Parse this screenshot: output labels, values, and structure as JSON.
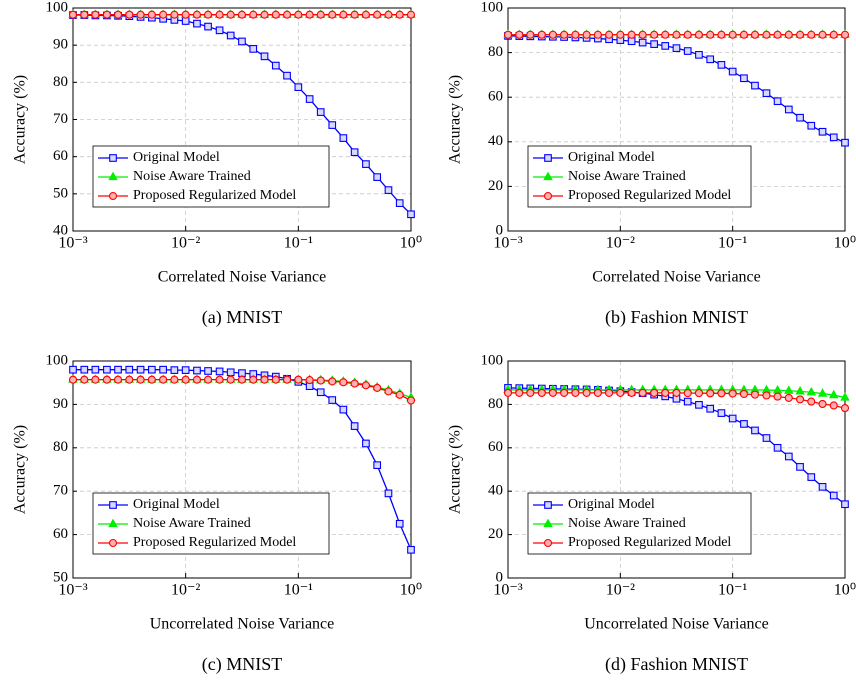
{
  "chart_data": [
    {
      "type": "line",
      "xscale": "log",
      "grid": true,
      "legend": "lower left",
      "ylabel": "Accuracy (%)",
      "xlabel": "Correlated Noise Variance",
      "caption": "(a) MNIST",
      "x": [
        0.001,
        0.00126,
        0.00158,
        0.002,
        0.00251,
        0.00316,
        0.00398,
        0.00501,
        0.00631,
        0.00794,
        0.01,
        0.0126,
        0.0158,
        0.02,
        0.0251,
        0.0316,
        0.0398,
        0.0501,
        0.0631,
        0.0794,
        0.1,
        0.126,
        0.158,
        0.2,
        0.251,
        0.316,
        0.398,
        0.501,
        0.631,
        0.794,
        1
      ],
      "xlim": [
        0.001,
        1
      ],
      "xticks": [
        {
          "value": 0.001,
          "label": "10⁻³"
        },
        {
          "value": 0.01,
          "label": "10⁻²"
        },
        {
          "value": 0.1,
          "label": "10⁻¹"
        },
        {
          "value": 1,
          "label": "10⁰"
        }
      ],
      "ylim": [
        40,
        100
      ],
      "yticks": [
        40,
        50,
        60,
        70,
        80,
        90,
        100
      ],
      "series": [
        {
          "name": "Original Model",
          "color": "#0000ff",
          "marker": "square",
          "values": [
            98.1,
            98.1,
            98.0,
            98.0,
            97.9,
            97.8,
            97.6,
            97.4,
            97.1,
            96.8,
            96.5,
            95.8,
            95.0,
            94.0,
            92.6,
            91.0,
            89.0,
            87.0,
            84.5,
            81.8,
            78.7,
            75.5,
            72.0,
            68.5,
            65.0,
            61.2,
            58.0,
            54.5,
            51.0,
            47.5,
            44.5
          ]
        },
        {
          "name": "Noise Aware Trained",
          "color": "#00ee00",
          "marker": "triangle",
          "values": [
            98.2,
            98.2,
            98.2,
            98.2,
            98.2,
            98.2,
            98.2,
            98.2,
            98.2,
            98.2,
            98.2,
            98.2,
            98.2,
            98.2,
            98.2,
            98.2,
            98.2,
            98.2,
            98.2,
            98.2,
            98.2,
            98.2,
            98.2,
            98.2,
            98.2,
            98.2,
            98.2,
            98.2,
            98.2,
            98.2,
            98.2
          ]
        },
        {
          "name": "Proposed Regularized Model",
          "color": "#ff0000",
          "marker": "circle",
          "values": [
            98.2,
            98.2,
            98.2,
            98.2,
            98.2,
            98.2,
            98.2,
            98.2,
            98.2,
            98.2,
            98.2,
            98.2,
            98.2,
            98.2,
            98.2,
            98.2,
            98.2,
            98.2,
            98.2,
            98.2,
            98.2,
            98.2,
            98.2,
            98.2,
            98.2,
            98.2,
            98.2,
            98.2,
            98.2,
            98.2,
            98.2
          ]
        }
      ]
    },
    {
      "type": "line",
      "xscale": "log",
      "grid": true,
      "legend": "lower left",
      "ylabel": "Accuracy (%)",
      "xlabel": "Correlated Noise Variance",
      "caption": "(b) Fashion MNIST",
      "x": [
        0.001,
        0.00126,
        0.00158,
        0.002,
        0.00251,
        0.00316,
        0.00398,
        0.00501,
        0.00631,
        0.00794,
        0.01,
        0.0126,
        0.0158,
        0.02,
        0.0251,
        0.0316,
        0.0398,
        0.0501,
        0.0631,
        0.0794,
        0.1,
        0.126,
        0.158,
        0.2,
        0.251,
        0.316,
        0.398,
        0.501,
        0.631,
        0.794,
        1
      ],
      "xlim": [
        0.001,
        1
      ],
      "xticks": [
        {
          "value": 0.001,
          "label": "10⁻³"
        },
        {
          "value": 0.01,
          "label": "10⁻²"
        },
        {
          "value": 0.1,
          "label": "10⁻¹"
        },
        {
          "value": 1,
          "label": "10⁰"
        }
      ],
      "ylim": [
        0,
        100
      ],
      "yticks": [
        0,
        20,
        40,
        60,
        80,
        100
      ],
      "series": [
        {
          "name": "Original Model",
          "color": "#0000ff",
          "marker": "square",
          "values": [
            87.5,
            87.4,
            87.3,
            87.2,
            87.1,
            87.0,
            86.8,
            86.6,
            86.3,
            86.0,
            85.6,
            85.1,
            84.5,
            83.8,
            83.0,
            82.0,
            80.7,
            79.0,
            77.0,
            74.5,
            71.5,
            68.5,
            65.2,
            61.8,
            58.2,
            54.5,
            50.8,
            47.2,
            44.5,
            42.0,
            39.6
          ]
        },
        {
          "name": "Noise Aware Trained",
          "color": "#00ee00",
          "marker": "triangle",
          "values": [
            88,
            88,
            88,
            88,
            88,
            88,
            88,
            88,
            88,
            88,
            88,
            88,
            88,
            88,
            88,
            88,
            88,
            88,
            88,
            88,
            88,
            88,
            88,
            88,
            88,
            88,
            88,
            88,
            88,
            88,
            88
          ]
        },
        {
          "name": "Proposed Regularized Model",
          "color": "#ff0000",
          "marker": "circle",
          "values": [
            88,
            88,
            88,
            88,
            88,
            88,
            88,
            88,
            88,
            88,
            88,
            88,
            88,
            88,
            88,
            88,
            88,
            88,
            88,
            88,
            88,
            88,
            88,
            88,
            88,
            88,
            88,
            88,
            88,
            88,
            88
          ]
        }
      ]
    },
    {
      "type": "line",
      "xscale": "log",
      "grid": true,
      "legend": "lower left",
      "ylabel": "Accuracy (%)",
      "xlabel": "Uncorrelated Noise Variance",
      "caption": "(c) MNIST",
      "x": [
        0.001,
        0.00126,
        0.00158,
        0.002,
        0.00251,
        0.00316,
        0.00398,
        0.00501,
        0.00631,
        0.00794,
        0.01,
        0.0126,
        0.0158,
        0.02,
        0.0251,
        0.0316,
        0.0398,
        0.0501,
        0.0631,
        0.0794,
        0.1,
        0.126,
        0.158,
        0.2,
        0.251,
        0.316,
        0.398,
        0.501,
        0.631,
        0.794,
        1
      ],
      "xlim": [
        0.001,
        1
      ],
      "xticks": [
        {
          "value": 0.001,
          "label": "10⁻³"
        },
        {
          "value": 0.01,
          "label": "10⁻²"
        },
        {
          "value": 0.1,
          "label": "10⁻¹"
        },
        {
          "value": 1,
          "label": "10⁰"
        }
      ],
      "ylim": [
        50,
        100
      ],
      "yticks": [
        50,
        60,
        70,
        80,
        90,
        100
      ],
      "series": [
        {
          "name": "Original Model",
          "color": "#0000ff",
          "marker": "square",
          "values": [
            98.0,
            98.0,
            98.0,
            98.0,
            98.0,
            98.0,
            98.0,
            98.0,
            98.0,
            97.9,
            97.9,
            97.8,
            97.7,
            97.6,
            97.4,
            97.2,
            97.0,
            96.7,
            96.4,
            95.9,
            95.2,
            94.2,
            92.8,
            91.0,
            88.8,
            85.0,
            81.0,
            76.0,
            69.5,
            62.5,
            56.5
          ]
        },
        {
          "name": "Noise Aware Trained",
          "color": "#00ee00",
          "marker": "triangle",
          "values": [
            95.7,
            95.7,
            95.7,
            95.7,
            95.7,
            95.7,
            95.7,
            95.7,
            95.7,
            95.7,
            95.7,
            95.7,
            95.7,
            95.7,
            95.7,
            95.7,
            95.7,
            95.7,
            95.7,
            95.7,
            95.7,
            95.7,
            95.6,
            95.5,
            95.3,
            95.0,
            94.6,
            94.0,
            93.3,
            92.5,
            91.6
          ]
        },
        {
          "name": "Proposed Regularized Model",
          "color": "#ff0000",
          "marker": "circle",
          "values": [
            95.7,
            95.7,
            95.7,
            95.7,
            95.7,
            95.7,
            95.7,
            95.7,
            95.7,
            95.7,
            95.7,
            95.7,
            95.7,
            95.7,
            95.7,
            95.7,
            95.7,
            95.7,
            95.7,
            95.7,
            95.7,
            95.6,
            95.5,
            95.3,
            95.1,
            94.8,
            94.4,
            93.8,
            93.0,
            92.2,
            90.9
          ]
        }
      ]
    },
    {
      "type": "line",
      "xscale": "log",
      "grid": true,
      "legend": "lower left",
      "ylabel": "Accuracy (%)",
      "xlabel": "Uncorrelated Noise Variance",
      "caption": "(d) Fashion MNIST",
      "x": [
        0.001,
        0.00126,
        0.00158,
        0.002,
        0.00251,
        0.00316,
        0.00398,
        0.00501,
        0.00631,
        0.00794,
        0.01,
        0.0126,
        0.0158,
        0.02,
        0.0251,
        0.0316,
        0.0398,
        0.0501,
        0.0631,
        0.0794,
        0.1,
        0.126,
        0.158,
        0.2,
        0.251,
        0.316,
        0.398,
        0.501,
        0.631,
        0.794,
        1
      ],
      "xlim": [
        0.001,
        1
      ],
      "xticks": [
        {
          "value": 0.001,
          "label": "10⁻³"
        },
        {
          "value": 0.01,
          "label": "10⁻²"
        },
        {
          "value": 0.1,
          "label": "10⁻¹"
        },
        {
          "value": 1,
          "label": "10⁰"
        }
      ],
      "ylim": [
        0,
        100
      ],
      "yticks": [
        0,
        20,
        40,
        60,
        80,
        100
      ],
      "series": [
        {
          "name": "Original Model",
          "color": "#0000ff",
          "marker": "square",
          "values": [
            87.6,
            87.5,
            87.4,
            87.3,
            87.2,
            87.1,
            87.0,
            86.9,
            86.7,
            86.4,
            86.1,
            85.7,
            85.2,
            84.5,
            83.7,
            82.6,
            81.3,
            79.8,
            78.0,
            76.0,
            73.5,
            71.0,
            68.0,
            64.5,
            60.0,
            56.0,
            51.2,
            46.5,
            42.0,
            38.0,
            34.0
          ]
        },
        {
          "name": "Noise Aware Trained",
          "color": "#00ee00",
          "marker": "triangle",
          "values": [
            86.7,
            86.7,
            86.7,
            86.7,
            86.7,
            86.7,
            86.7,
            86.7,
            86.7,
            86.7,
            86.7,
            86.7,
            86.7,
            86.7,
            86.7,
            86.7,
            86.7,
            86.7,
            86.7,
            86.7,
            86.7,
            86.7,
            86.7,
            86.6,
            86.5,
            86.3,
            86.0,
            85.6,
            85.0,
            84.3,
            83.2
          ]
        },
        {
          "name": "Proposed Regularized Model",
          "color": "#ff0000",
          "marker": "circle",
          "values": [
            85.3,
            85.3,
            85.3,
            85.3,
            85.3,
            85.3,
            85.3,
            85.3,
            85.3,
            85.3,
            85.3,
            85.3,
            85.3,
            85.3,
            85.3,
            85.3,
            85.2,
            85.2,
            85.1,
            85.1,
            85.0,
            84.8,
            84.5,
            84.1,
            83.6,
            83.0,
            82.3,
            81.3,
            80.2,
            79.5,
            78.3
          ]
        }
      ]
    }
  ]
}
